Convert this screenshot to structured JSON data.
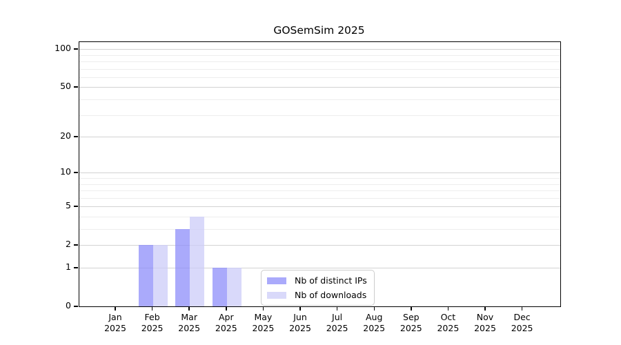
{
  "chart_data": {
    "type": "bar",
    "title": "GOSemSim 2025",
    "x_axis": {
      "months": [
        "Jan",
        "Feb",
        "Mar",
        "Apr",
        "May",
        "Jun",
        "Jul",
        "Aug",
        "Sep",
        "Oct",
        "Nov",
        "Dec"
      ],
      "year": "2025"
    },
    "y_axis": {
      "scale": "log1p",
      "major_ticks": [
        0,
        1,
        2,
        5,
        10,
        20,
        50,
        100
      ],
      "minor_gridlines": [
        3,
        4,
        6,
        7,
        8,
        9,
        30,
        40,
        60,
        70,
        80,
        90
      ],
      "range_top_value": 113
    },
    "series": [
      {
        "name": "Nb of distinct IPs",
        "color": "rgba(141,141,249,0.75)",
        "values": [
          0,
          2,
          3,
          1,
          0,
          0,
          0,
          0,
          0,
          0,
          0,
          0
        ]
      },
      {
        "name": "Nb of downloads",
        "color": "rgba(204,204,248,0.75)",
        "values": [
          0,
          2,
          4,
          1,
          0,
          0,
          0,
          0,
          0,
          0,
          0,
          0
        ]
      }
    ],
    "legend_position": "bottom-center",
    "grid": true,
    "colors": {
      "major_grid": "#d2d2d2",
      "minor_grid": "#ededed",
      "spine": "#000000",
      "background": "#ffffff",
      "text": "#000000",
      "legend_border": "#cccccc"
    }
  }
}
